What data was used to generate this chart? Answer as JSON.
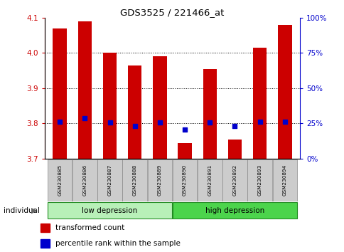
{
  "title": "GDS3525 / 221466_at",
  "samples": [
    "GSM230885",
    "GSM230886",
    "GSM230887",
    "GSM230888",
    "GSM230889",
    "GSM230890",
    "GSM230891",
    "GSM230892",
    "GSM230893",
    "GSM230894"
  ],
  "bar_values": [
    4.07,
    4.09,
    4.0,
    3.965,
    3.99,
    3.745,
    3.955,
    3.755,
    4.015,
    4.08
  ],
  "bar_bottom": 3.7,
  "blue_values": [
    3.805,
    3.815,
    3.802,
    3.793,
    3.802,
    3.782,
    3.802,
    3.792,
    3.805,
    3.805
  ],
  "ylim": [
    3.7,
    4.1
  ],
  "yticks_left": [
    3.7,
    3.8,
    3.9,
    4.0,
    4.1
  ],
  "perc_labels": [
    0,
    25,
    50,
    75,
    100
  ],
  "bar_color": "#CC0000",
  "blue_color": "#0000CC",
  "bar_width": 0.55,
  "background_color": "#ffffff",
  "legend_items": [
    "transformed count",
    "percentile rank within the sample"
  ],
  "individual_label": "individual",
  "left_label_color": "#CC0000",
  "right_label_color": "#0000CC",
  "low_group_color": "#B8F0B8",
  "high_group_color": "#4CD44C",
  "group_border_color": "#228B22",
  "sample_box_color": "#CCCCCC",
  "sample_box_border": "#888888"
}
